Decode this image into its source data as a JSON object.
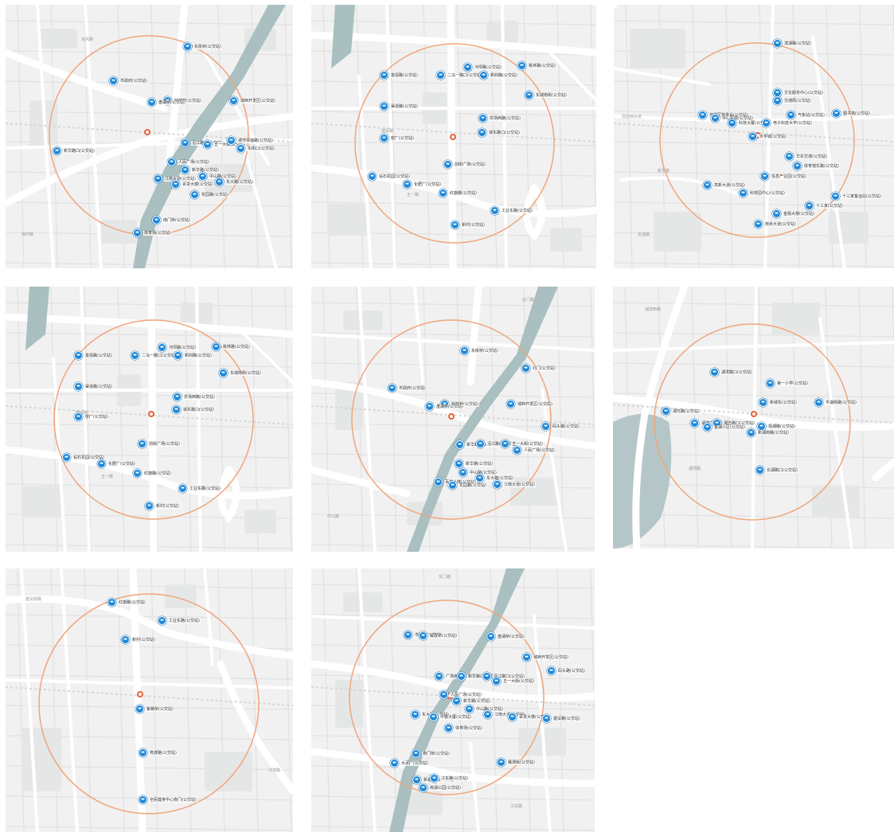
{
  "colors": {
    "radius": "#f0a57a",
    "stop_pin": "#1e88d8",
    "center": "#e8603c",
    "river": "#a9bfc0",
    "map_bg": "#f1f1f1"
  },
  "icons": {
    "stop": "bus-stop-icon",
    "center": "location-marker-icon"
  },
  "tiles": [
    {
      "stops": [
        {
          "label": "东街桥(公交站)"
        },
        {
          "label": "市政府(公交站)"
        },
        {
          "label": "解放桥(公交站)"
        },
        {
          "label": "盘湖桥(公交站)"
        },
        {
          "label": "城西开发区(公交站)"
        },
        {
          "label": "新华路口(公交站)"
        },
        {
          "label": "沿江路口(公交站)"
        },
        {
          "label": "五一大街(公交站)"
        },
        {
          "label": "城市快速路(公交站)"
        },
        {
          "label": "东街口(公交站)"
        },
        {
          "label": "人民广场(公交站)"
        },
        {
          "label": "新华路(公交站)"
        },
        {
          "label": "中山路(公交站)"
        },
        {
          "label": "东大路(公交站)"
        },
        {
          "label": "江南大道(公交站)"
        },
        {
          "label": "百货大楼(公交站)"
        },
        {
          "label": "花园路(公交站)"
        },
        {
          "label": "南门桥(公交站)"
        },
        {
          "label": "体育场(公交站)"
        }
      ]
    },
    {
      "stops": [
        {
          "label": "富强路(公交站)"
        },
        {
          "label": "二马一路口(公交站)"
        },
        {
          "label": "河坝路(公交站)"
        },
        {
          "label": "新四路(公交站)"
        },
        {
          "label": "桃林路(公交站)"
        },
        {
          "label": "东城南街(公交站)"
        },
        {
          "label": "渠道路(公交站)"
        },
        {
          "label": "农场西路(公交站)"
        },
        {
          "label": "城东路口(公交站)"
        },
        {
          "label": "窑厂(公交站)"
        },
        {
          "label": "前街广场(公交站)"
        },
        {
          "label": "钻石花园(公交站)"
        },
        {
          "label": "化肥厂(公交站)"
        },
        {
          "label": "红旗路(公交站)"
        },
        {
          "label": "工业东路(公交站)"
        },
        {
          "label": "新村(公交站)"
        }
      ]
    },
    {
      "stops": [
        {
          "label": "滨湖路(公交站)"
        },
        {
          "label": "文化服务中心(公交站)"
        },
        {
          "label": "交通局(公交站)"
        },
        {
          "label": "开发区管委会(公交站)"
        },
        {
          "label": "中心医院(公交站)"
        },
        {
          "label": "科技大厦(公交站)"
        },
        {
          "label": "气象站(公交站)"
        },
        {
          "label": "图书馆(公交站)"
        },
        {
          "label": "大学城(公交站)"
        },
        {
          "label": "电子科技大学(公交站)"
        },
        {
          "label": "华东交通(公交站)"
        },
        {
          "label": "体育馆东路(公交站)"
        },
        {
          "label": "信息产业园(公交站)"
        },
        {
          "label": "高新大道(公交站)"
        },
        {
          "label": "科技园中心(公交站)"
        },
        {
          "label": "十三家客运站(公交站)"
        },
        {
          "label": "十三家(公交站)"
        },
        {
          "label": "金融大楼(公交站)"
        },
        {
          "label": "南京大道(公交站)"
        }
      ]
    },
    {
      "stops": [
        {
          "label": "富强路(公交站)"
        },
        {
          "label": "二马一路口(公交站)"
        },
        {
          "label": "河坝路(公交站)"
        },
        {
          "label": "新四路(公交站)"
        },
        {
          "label": "桃林路(公交站)"
        },
        {
          "label": "东城南街(公交站)"
        },
        {
          "label": "渠道路(公交站)"
        },
        {
          "label": "农场西路(公交站)"
        },
        {
          "label": "城东路口(公交站)"
        },
        {
          "label": "窑厂(公交站)"
        },
        {
          "label": "前街广场(公交站)"
        },
        {
          "label": "钻石花园(公交站)"
        },
        {
          "label": "化肥厂(公交站)"
        },
        {
          "label": "红旗路(公交站)"
        },
        {
          "label": "工业东路(公交站)"
        },
        {
          "label": "新村(公交站)"
        }
      ]
    },
    {
      "stops": [
        {
          "label": "东街桥(公交站)"
        },
        {
          "label": "市政府(公交站)"
        },
        {
          "label": "北门(公交站)"
        },
        {
          "label": "解放桥(公交站)"
        },
        {
          "label": "盘湖桥(公交站)"
        },
        {
          "label": "城西开发区(公交站)"
        },
        {
          "label": "码头路(公交站)"
        },
        {
          "label": "新华路口(公交站)"
        },
        {
          "label": "沿江路口(公交站)"
        },
        {
          "label": "五一大街(公交站)"
        },
        {
          "label": "人民广场(公交站)"
        },
        {
          "label": "新华路(公交站)"
        },
        {
          "label": "中山路(公交站)"
        },
        {
          "label": "东大路(公交站)"
        },
        {
          "label": "江南大道(公交站)"
        },
        {
          "label": "百货大楼(公交站)"
        },
        {
          "label": "花园路(公交站)"
        }
      ]
    },
    {
      "stops": [
        {
          "label": "湖滨路口(公交站)"
        },
        {
          "label": "第一小学(公交站)"
        },
        {
          "label": "新城东(公交站)"
        },
        {
          "label": "平湖南路(公交站)"
        },
        {
          "label": "湖光路(公交站)"
        },
        {
          "label": "湖滨广场(公交站)"
        },
        {
          "label": "湖光路口(公交站)"
        },
        {
          "label": "金湖小区(公交站)"
        },
        {
          "label": "观湖路(公交站)"
        },
        {
          "label": "新湖南路(公交站)"
        },
        {
          "label": "长湖路口(公交站)"
        }
      ]
    },
    {
      "stops": [
        {
          "label": "红旗路(公交站)"
        },
        {
          "label": "工业东路(公交站)"
        },
        {
          "label": "新村(公交站)"
        },
        {
          "label": "紫薇桥(公交站)"
        },
        {
          "label": "竞渡路(公交站)"
        },
        {
          "label": "全民健身中心南门(公交站)"
        }
      ]
    },
    {
      "stops": [
        {
          "label": "市政府(公交站)"
        },
        {
          "label": "解放桥(公交站)"
        },
        {
          "label": "盘湖桥(公交站)"
        },
        {
          "label": "城西开发区(公交站)"
        },
        {
          "label": "码头路(公交站)"
        },
        {
          "label": "广场南路(公交站)"
        },
        {
          "label": "新华路口(公交站)"
        },
        {
          "label": "沿江路口(公交站)"
        },
        {
          "label": "五一大街(公交站)"
        },
        {
          "label": "人民广场(公交站)"
        },
        {
          "label": "新华路(公交站)"
        },
        {
          "label": "中山路(公交站)"
        },
        {
          "label": "东大路(公交站)"
        },
        {
          "label": "中银大厦(公交站)"
        },
        {
          "label": "江南大道(公交站)"
        },
        {
          "label": "百货大楼(公交站)"
        },
        {
          "label": "建设路(公交站)"
        },
        {
          "label": "体育场(公交站)"
        },
        {
          "label": "南门桥(公交站)"
        },
        {
          "label": "鹰潭街(公交站)"
        },
        {
          "label": "水泥厂(公交站)"
        },
        {
          "label": "新塘路口(公交站)"
        },
        {
          "label": "江东路(公交站)"
        },
        {
          "label": "南湖公园(公交站)"
        }
      ]
    }
  ]
}
